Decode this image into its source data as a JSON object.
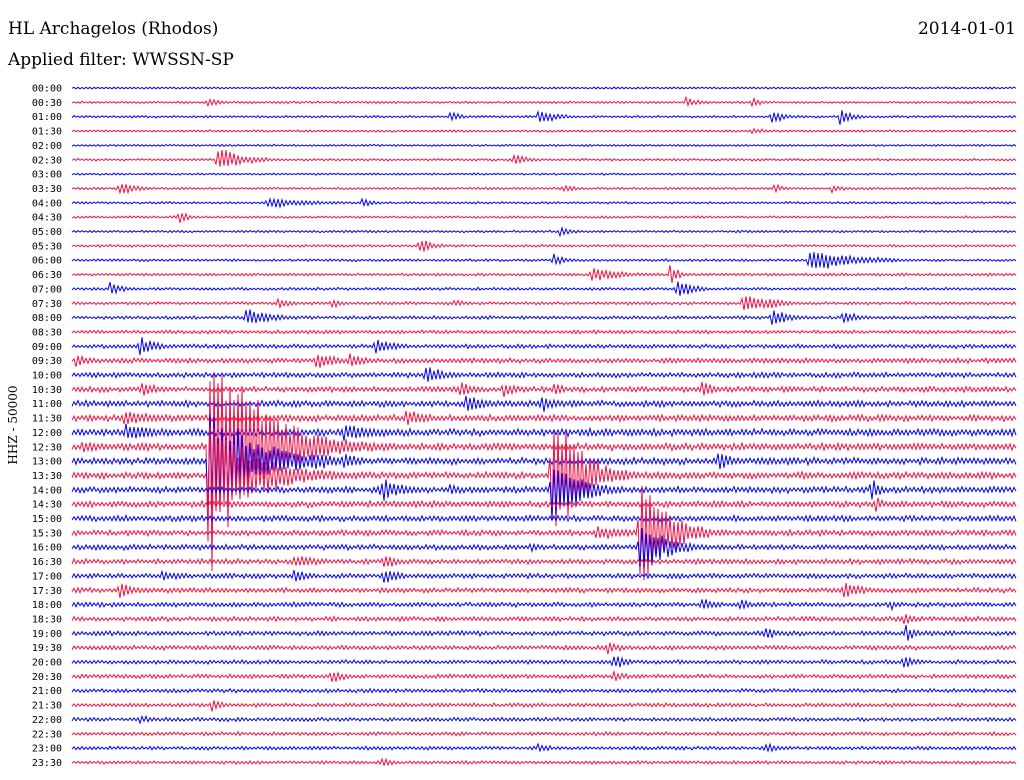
{
  "header": {
    "station": "HL Archagelos (Rhodos)",
    "date": "2014-01-01",
    "filter": "Applied filter: WWSSN-SP"
  },
  "chart_data": {
    "type": "line",
    "ylabel": "HHZ - 50000",
    "row_colors": [
      "#0000ee",
      "#ee1144"
    ],
    "rows": [
      "00:00",
      "00:30",
      "01:00",
      "01:30",
      "02:00",
      "02:30",
      "03:00",
      "03:30",
      "04:00",
      "04:30",
      "05:00",
      "05:30",
      "06:00",
      "06:30",
      "07:00",
      "07:30",
      "08:00",
      "08:30",
      "09:00",
      "09:30",
      "10:00",
      "10:30",
      "11:00",
      "11:30",
      "12:00",
      "12:30",
      "13:00",
      "13:30",
      "14:00",
      "14:30",
      "15:00",
      "15:30",
      "16:00",
      "16:30",
      "17:00",
      "17:30",
      "18:00",
      "18:30",
      "19:00",
      "19:30",
      "20:00",
      "20:30",
      "21:00",
      "21:30",
      "22:00",
      "22:30",
      "23:00",
      "23:30"
    ],
    "row_duration_min": 30,
    "noise_level": [
      0.8,
      0.9,
      0.9,
      0.9,
      0.8,
      0.9,
      0.8,
      0.9,
      0.9,
      0.9,
      0.9,
      1.0,
      1.0,
      1.1,
      1.1,
      1.2,
      1.3,
      1.4,
      1.6,
      1.9,
      2.0,
      2.2,
      2.4,
      2.6,
      2.8,
      2.8,
      2.7,
      2.6,
      2.5,
      2.4,
      2.3,
      2.2,
      2.1,
      2.0,
      1.9,
      1.9,
      1.8,
      1.8,
      1.8,
      1.7,
      1.6,
      1.6,
      1.5,
      1.5,
      1.5,
      1.4,
      1.4,
      1.3
    ],
    "events": [
      {
        "row": 1,
        "t": 4.3,
        "amp": 6,
        "dur": 0.4
      },
      {
        "row": 1,
        "t": 19.5,
        "amp": 6,
        "dur": 0.4
      },
      {
        "row": 1,
        "t": 21.6,
        "amp": 5,
        "dur": 0.4
      },
      {
        "row": 2,
        "t": 12.0,
        "amp": 6,
        "dur": 0.4
      },
      {
        "row": 2,
        "t": 14.8,
        "amp": 9,
        "dur": 0.6
      },
      {
        "row": 2,
        "t": 22.2,
        "amp": 9,
        "dur": 0.4
      },
      {
        "row": 2,
        "t": 24.4,
        "amp": 10,
        "dur": 0.4
      },
      {
        "row": 3,
        "t": 21.6,
        "amp": 4,
        "dur": 0.5
      },
      {
        "row": 5,
        "t": 4.6,
        "amp": 15,
        "dur": 0.8
      },
      {
        "row": 5,
        "t": 14.0,
        "amp": 7,
        "dur": 0.5
      },
      {
        "row": 7,
        "t": 1.5,
        "amp": 9,
        "dur": 0.5
      },
      {
        "row": 7,
        "t": 15.6,
        "amp": 5,
        "dur": 0.4
      },
      {
        "row": 7,
        "t": 22.3,
        "amp": 5,
        "dur": 0.4
      },
      {
        "row": 7,
        "t": 24.1,
        "amp": 5,
        "dur": 0.4
      },
      {
        "row": 8,
        "t": 6.2,
        "amp": 6,
        "dur": 1.5
      },
      {
        "row": 8,
        "t": 9.2,
        "amp": 5,
        "dur": 0.4
      },
      {
        "row": 9,
        "t": 3.4,
        "amp": 8,
        "dur": 0.3
      },
      {
        "row": 10,
        "t": 15.5,
        "amp": 6,
        "dur": 0.4
      },
      {
        "row": 11,
        "t": 11.0,
        "amp": 9,
        "dur": 0.5
      },
      {
        "row": 12,
        "t": 15.3,
        "amp": 7,
        "dur": 0.5
      },
      {
        "row": 12,
        "t": 23.4,
        "amp": 14,
        "dur": 1.4
      },
      {
        "row": 13,
        "t": 16.5,
        "amp": 8,
        "dur": 1.0
      },
      {
        "row": 13,
        "t": 19.0,
        "amp": 12,
        "dur": 0.3
      },
      {
        "row": 14,
        "t": 1.2,
        "amp": 8,
        "dur": 0.4
      },
      {
        "row": 14,
        "t": 19.2,
        "amp": 14,
        "dur": 0.5
      },
      {
        "row": 15,
        "t": 6.5,
        "amp": 7,
        "dur": 0.5
      },
      {
        "row": 15,
        "t": 8.2,
        "amp": 6,
        "dur": 0.4
      },
      {
        "row": 15,
        "t": 12.1,
        "amp": 5,
        "dur": 0.4
      },
      {
        "row": 15,
        "t": 21.3,
        "amp": 12,
        "dur": 0.8
      },
      {
        "row": 15,
        "t": 22.1,
        "amp": 8,
        "dur": 0.6
      },
      {
        "row": 16,
        "t": 5.5,
        "amp": 12,
        "dur": 0.8
      },
      {
        "row": 16,
        "t": 22.2,
        "amp": 10,
        "dur": 0.6
      },
      {
        "row": 16,
        "t": 24.5,
        "amp": 10,
        "dur": 0.4
      },
      {
        "row": 18,
        "t": 2.1,
        "amp": 12,
        "dur": 0.6
      },
      {
        "row": 18,
        "t": 9.6,
        "amp": 10,
        "dur": 0.6
      },
      {
        "row": 19,
        "t": 0.1,
        "amp": 7,
        "dur": 0.6
      },
      {
        "row": 19,
        "t": 7.7,
        "amp": 10,
        "dur": 0.8
      },
      {
        "row": 19,
        "t": 8.8,
        "amp": 10,
        "dur": 0.6
      },
      {
        "row": 20,
        "t": 11.2,
        "amp": 12,
        "dur": 0.6
      },
      {
        "row": 21,
        "t": 2.2,
        "amp": 10,
        "dur": 0.5
      },
      {
        "row": 21,
        "t": 12.3,
        "amp": 10,
        "dur": 0.6
      },
      {
        "row": 21,
        "t": 13.7,
        "amp": 10,
        "dur": 0.4
      },
      {
        "row": 21,
        "t": 15.3,
        "amp": 9,
        "dur": 0.4
      },
      {
        "row": 21,
        "t": 20.0,
        "amp": 12,
        "dur": 0.4
      },
      {
        "row": 22,
        "t": 12.5,
        "amp": 12,
        "dur": 0.6
      },
      {
        "row": 22,
        "t": 14.9,
        "amp": 12,
        "dur": 0.4
      },
      {
        "row": 23,
        "t": 1.6,
        "amp": 9,
        "dur": 1.5
      },
      {
        "row": 23,
        "t": 10.6,
        "amp": 12,
        "dur": 0.6
      },
      {
        "row": 24,
        "t": 1.7,
        "amp": 10,
        "dur": 1.2
      },
      {
        "row": 24,
        "t": 8.6,
        "amp": 10,
        "dur": 1.4
      },
      {
        "row": 25,
        "t": 0.3,
        "amp": 8,
        "dur": 1.0
      },
      {
        "row": 25,
        "t": 5.3,
        "amp": 12,
        "dur": 0.8
      },
      {
        "row": 26,
        "t": 6.2,
        "amp": 14,
        "dur": 0.8
      },
      {
        "row": 26,
        "t": 7.6,
        "amp": 12,
        "dur": 1.0
      },
      {
        "row": 26,
        "t": 8.6,
        "amp": 10,
        "dur": 0.6
      },
      {
        "row": 26,
        "t": 20.5,
        "amp": 12,
        "dur": 0.6
      },
      {
        "row": 27,
        "t": 6.0,
        "amp": 10,
        "dur": 0.4
      },
      {
        "row": 28,
        "t": 9.8,
        "amp": 14,
        "dur": 0.8
      },
      {
        "row": 28,
        "t": 12.0,
        "amp": 8,
        "dur": 0.6
      },
      {
        "row": 28,
        "t": 25.4,
        "amp": 15,
        "dur": 0.3
      },
      {
        "row": 29,
        "t": 25.5,
        "amp": 10,
        "dur": 0.3
      },
      {
        "row": 31,
        "t": 16.6,
        "amp": 10,
        "dur": 1.0
      },
      {
        "row": 32,
        "t": 14.5,
        "amp": 6,
        "dur": 0.5
      },
      {
        "row": 33,
        "t": 7.0,
        "amp": 9,
        "dur": 0.8
      },
      {
        "row": 33,
        "t": 9.9,
        "amp": 10,
        "dur": 0.4
      },
      {
        "row": 34,
        "t": 2.8,
        "amp": 7,
        "dur": 0.8
      },
      {
        "row": 34,
        "t": 7.0,
        "amp": 10,
        "dur": 0.5
      },
      {
        "row": 34,
        "t": 9.9,
        "amp": 10,
        "dur": 0.5
      },
      {
        "row": 35,
        "t": 1.5,
        "amp": 10,
        "dur": 0.6
      },
      {
        "row": 35,
        "t": 24.5,
        "amp": 10,
        "dur": 0.7
      },
      {
        "row": 36,
        "t": 20.0,
        "amp": 8,
        "dur": 0.5
      },
      {
        "row": 36,
        "t": 21.2,
        "amp": 8,
        "dur": 0.4
      },
      {
        "row": 36,
        "t": 26.0,
        "amp": 6,
        "dur": 0.4
      },
      {
        "row": 37,
        "t": 26.4,
        "amp": 8,
        "dur": 0.3
      },
      {
        "row": 38,
        "t": 22.0,
        "amp": 10,
        "dur": 0.4
      },
      {
        "row": 38,
        "t": 26.5,
        "amp": 10,
        "dur": 0.4
      },
      {
        "row": 39,
        "t": 17.0,
        "amp": 8,
        "dur": 0.5
      },
      {
        "row": 40,
        "t": 17.2,
        "amp": 10,
        "dur": 0.4
      },
      {
        "row": 40,
        "t": 26.4,
        "amp": 10,
        "dur": 0.4
      },
      {
        "row": 41,
        "t": 8.2,
        "amp": 10,
        "dur": 0.4
      },
      {
        "row": 41,
        "t": 17.2,
        "amp": 8,
        "dur": 0.4
      },
      {
        "row": 43,
        "t": 4.4,
        "amp": 8,
        "dur": 0.4
      },
      {
        "row": 44,
        "t": 2.1,
        "amp": 6,
        "dur": 0.4
      },
      {
        "row": 46,
        "t": 14.8,
        "amp": 6,
        "dur": 0.4
      },
      {
        "row": 46,
        "t": 22.0,
        "amp": 7,
        "dur": 0.5
      },
      {
        "row": 47,
        "t": 9.8,
        "amp": 6,
        "dur": 0.4
      }
    ],
    "quakes": [
      {
        "row": 25,
        "t": 4.3,
        "amp": 140,
        "dur": 4.5,
        "span": 3
      },
      {
        "row": 27,
        "t": 15.2,
        "amp": 90,
        "dur": 2.5,
        "span": 2
      },
      {
        "row": 31,
        "t": 18.0,
        "amp": 70,
        "dur": 2.5,
        "span": 2
      }
    ]
  }
}
